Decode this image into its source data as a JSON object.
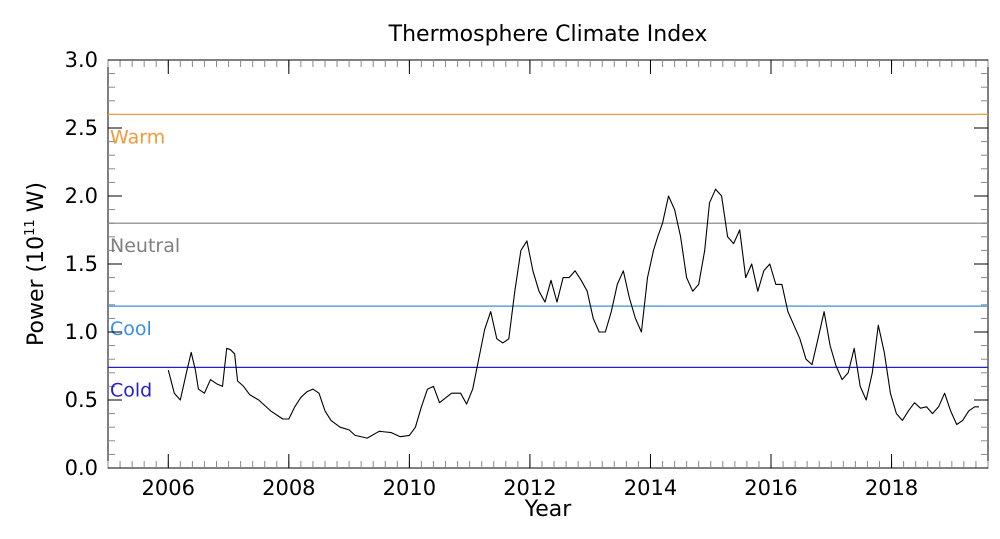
{
  "chart_data": {
    "type": "line",
    "title": "Thermosphere Climate Index",
    "xlabel": "Year",
    "ylabel": "Power (10^11 W)",
    "ylabel_parts": {
      "pre": "Power (10",
      "sup": "11",
      "post": " W)"
    },
    "xlim": [
      2005.0,
      2019.6
    ],
    "ylim": [
      0.0,
      3.0
    ],
    "x_ticks": [
      2006,
      2008,
      2010,
      2012,
      2014,
      2016,
      2018
    ],
    "x_tick_labels": [
      "2006",
      "2008",
      "2010",
      "2012",
      "2014",
      "2016",
      "2018"
    ],
    "y_ticks": [
      0.0,
      0.5,
      1.0,
      1.5,
      2.0,
      2.5,
      3.0
    ],
    "y_tick_labels": [
      "0.0",
      "0.5",
      "1.0",
      "1.5",
      "2.0",
      "2.5",
      "3.0"
    ],
    "thresholds": [
      {
        "label": "Warm",
        "value": 2.6,
        "color": "#f39a3c"
      },
      {
        "label": "Neutral",
        "value": 1.8,
        "color": "#7f7f7f"
      },
      {
        "label": "Cool",
        "value": 1.19,
        "color": "#3a8fe0"
      },
      {
        "label": "Cold",
        "value": 0.74,
        "color": "#2222cc"
      }
    ],
    "series": [
      {
        "color": "#000000",
        "x": [
          2006.0,
          2006.1,
          2006.2,
          2006.3,
          2006.38,
          2006.45,
          2006.5,
          2006.6,
          2006.7,
          2006.8,
          2006.9,
          2006.97,
          2007.03,
          2007.1,
          2007.15,
          2007.25,
          2007.35,
          2007.5,
          2007.7,
          2007.9,
          2008.0,
          2008.1,
          2008.2,
          2008.3,
          2008.4,
          2008.5,
          2008.6,
          2008.7,
          2008.85,
          2009.0,
          2009.1,
          2009.3,
          2009.5,
          2009.7,
          2009.85,
          2010.0,
          2010.1,
          2010.2,
          2010.3,
          2010.4,
          2010.5,
          2010.7,
          2010.85,
          2010.95,
          2011.05,
          2011.15,
          2011.25,
          2011.35,
          2011.45,
          2011.55,
          2011.65,
          2011.75,
          2011.85,
          2011.95,
          2012.05,
          2012.15,
          2012.25,
          2012.35,
          2012.45,
          2012.55,
          2012.65,
          2012.75,
          2012.85,
          2012.95,
          2013.05,
          2013.15,
          2013.25,
          2013.35,
          2013.45,
          2013.55,
          2013.65,
          2013.75,
          2013.85,
          2013.95,
          2014.05,
          2014.12,
          2014.2,
          2014.3,
          2014.4,
          2014.5,
          2014.6,
          2014.7,
          2014.8,
          2014.9,
          2014.98,
          2015.08,
          2015.18,
          2015.28,
          2015.38,
          2015.48,
          2015.58,
          2015.68,
          2015.78,
          2015.88,
          2015.98,
          2016.08,
          2016.18,
          2016.28,
          2016.38,
          2016.48,
          2016.58,
          2016.68,
          2016.78,
          2016.88,
          2016.98,
          2017.08,
          2017.18,
          2017.28,
          2017.38,
          2017.48,
          2017.58,
          2017.68,
          2017.78,
          2017.88,
          2017.98,
          2018.08,
          2018.18,
          2018.28,
          2018.38,
          2018.48,
          2018.58,
          2018.68,
          2018.78,
          2018.88,
          2018.98,
          2019.08,
          2019.18,
          2019.28,
          2019.38,
          2019.45
        ],
        "values": [
          0.72,
          0.55,
          0.5,
          0.7,
          0.85,
          0.72,
          0.58,
          0.55,
          0.65,
          0.62,
          0.6,
          0.88,
          0.87,
          0.84,
          0.64,
          0.6,
          0.54,
          0.5,
          0.42,
          0.36,
          0.36,
          0.45,
          0.52,
          0.56,
          0.58,
          0.55,
          0.42,
          0.35,
          0.3,
          0.28,
          0.24,
          0.22,
          0.27,
          0.26,
          0.23,
          0.24,
          0.3,
          0.45,
          0.58,
          0.6,
          0.48,
          0.55,
          0.55,
          0.47,
          0.58,
          0.8,
          1.02,
          1.15,
          0.95,
          0.92,
          0.95,
          1.3,
          1.6,
          1.67,
          1.45,
          1.3,
          1.22,
          1.38,
          1.22,
          1.4,
          1.4,
          1.45,
          1.38,
          1.3,
          1.1,
          1.0,
          1.0,
          1.15,
          1.35,
          1.45,
          1.25,
          1.1,
          1.0,
          1.4,
          1.6,
          1.7,
          1.8,
          2.0,
          1.9,
          1.7,
          1.4,
          1.3,
          1.35,
          1.6,
          1.95,
          2.05,
          2.0,
          1.7,
          1.65,
          1.75,
          1.4,
          1.5,
          1.3,
          1.45,
          1.5,
          1.35,
          1.35,
          1.15,
          1.05,
          0.95,
          0.8,
          0.76,
          0.95,
          1.15,
          0.9,
          0.75,
          0.65,
          0.7,
          0.88,
          0.6,
          0.5,
          0.7,
          1.05,
          0.85,
          0.55,
          0.4,
          0.35,
          0.42,
          0.48,
          0.44,
          0.45,
          0.4,
          0.45,
          0.55,
          0.42,
          0.32,
          0.35,
          0.42,
          0.45,
          0.45
        ]
      }
    ],
    "grid": false,
    "legend": "none"
  }
}
